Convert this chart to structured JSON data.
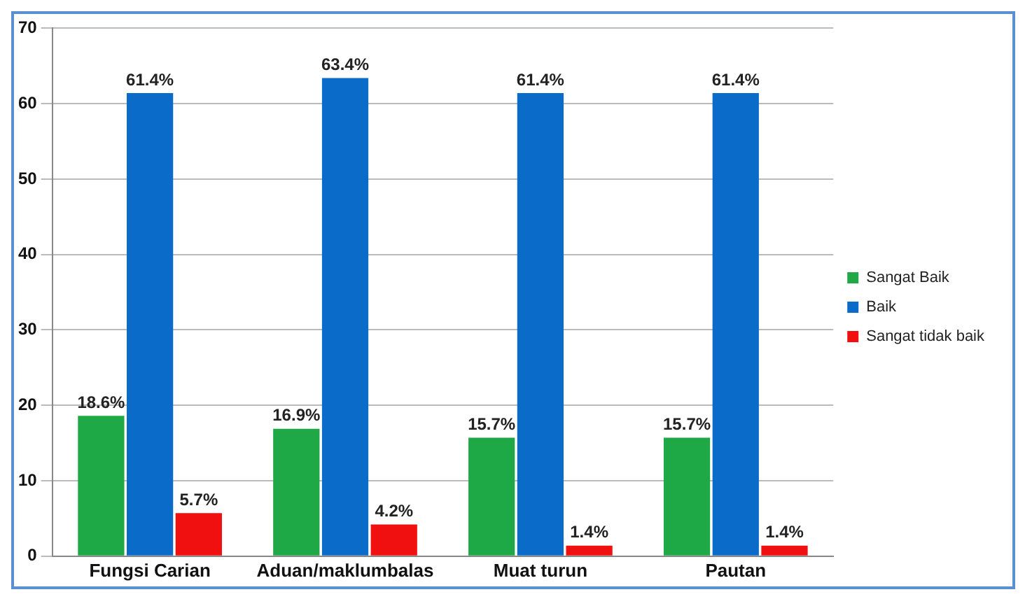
{
  "chart_data": {
    "type": "bar",
    "categories": [
      "Fungsi Carian",
      "Aduan/maklumbalas",
      "Muat turun",
      "Pautan"
    ],
    "series": [
      {
        "name": "Sangat Baik",
        "color": "#1fa846",
        "values": [
          18.6,
          16.9,
          15.7,
          15.7
        ],
        "value_labels": [
          "18.6%",
          "16.9%",
          "15.7%",
          "15.7%"
        ]
      },
      {
        "name": "Baik",
        "color": "#0a6cc8",
        "values": [
          61.4,
          63.4,
          61.4,
          61.4
        ],
        "value_labels": [
          "61.4%",
          "63.4%",
          "61.4%",
          "61.4%"
        ]
      },
      {
        "name": "Sangat tidak baik",
        "color": "#f01010",
        "values": [
          5.7,
          4.2,
          1.4,
          1.4
        ],
        "value_labels": [
          "5.7%",
          "4.2%",
          "1.4%",
          "1.4%"
        ]
      }
    ],
    "ylim": [
      0,
      70
    ],
    "yticks": [
      0,
      10,
      20,
      30,
      40,
      50,
      60,
      70
    ],
    "grid": "y",
    "legend": "right"
  }
}
